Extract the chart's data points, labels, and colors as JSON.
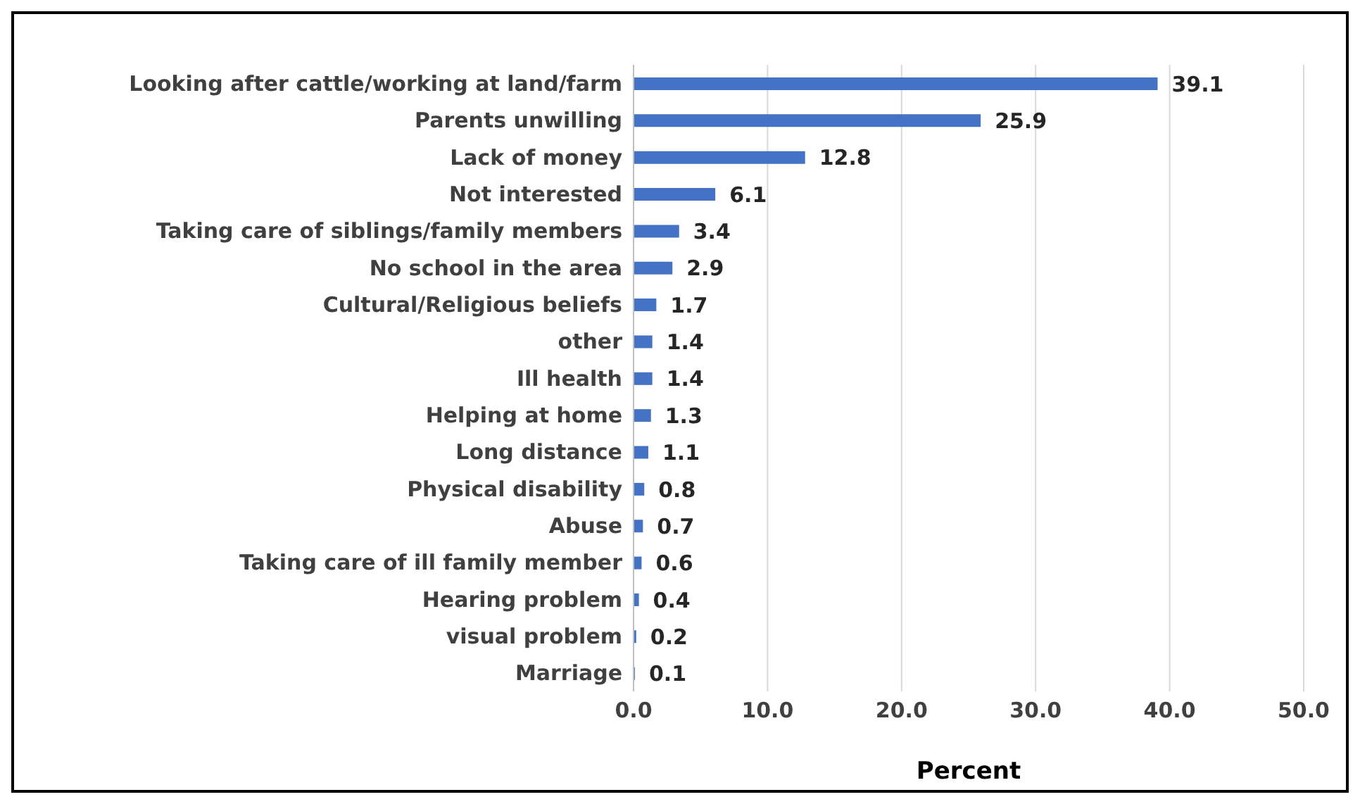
{
  "chart_data": {
    "type": "bar",
    "orientation": "horizontal",
    "xlabel": "Percent",
    "categories": [
      "Looking after cattle/working at land/farm",
      "Parents unwilling",
      "Lack of money",
      "Not interested",
      "Taking care of siblings/family members",
      "No school in the area",
      "Cultural/Religious beliefs",
      "other",
      "Ill health",
      "Helping at home",
      "Long distance",
      "Physical disability",
      "Abuse",
      "Taking care of ill family member",
      "Hearing problem",
      "visual problem",
      "Marriage"
    ],
    "values": [
      39.1,
      25.9,
      12.8,
      6.1,
      3.4,
      2.9,
      1.7,
      1.4,
      1.4,
      1.3,
      1.1,
      0.8,
      0.7,
      0.6,
      0.4,
      0.2,
      0.1
    ],
    "color": "#4472c4",
    "xlim": [
      0,
      50
    ],
    "xticks": [
      {
        "value": 0,
        "label": "0.0"
      },
      {
        "value": 10,
        "label": "10.0"
      },
      {
        "value": 20,
        "label": "20.0"
      },
      {
        "value": 30,
        "label": "30.0"
      },
      {
        "value": 40,
        "label": "40.0"
      },
      {
        "value": 50,
        "label": "50.0"
      }
    ],
    "grid": "x",
    "data_labels": true,
    "legend": false
  }
}
